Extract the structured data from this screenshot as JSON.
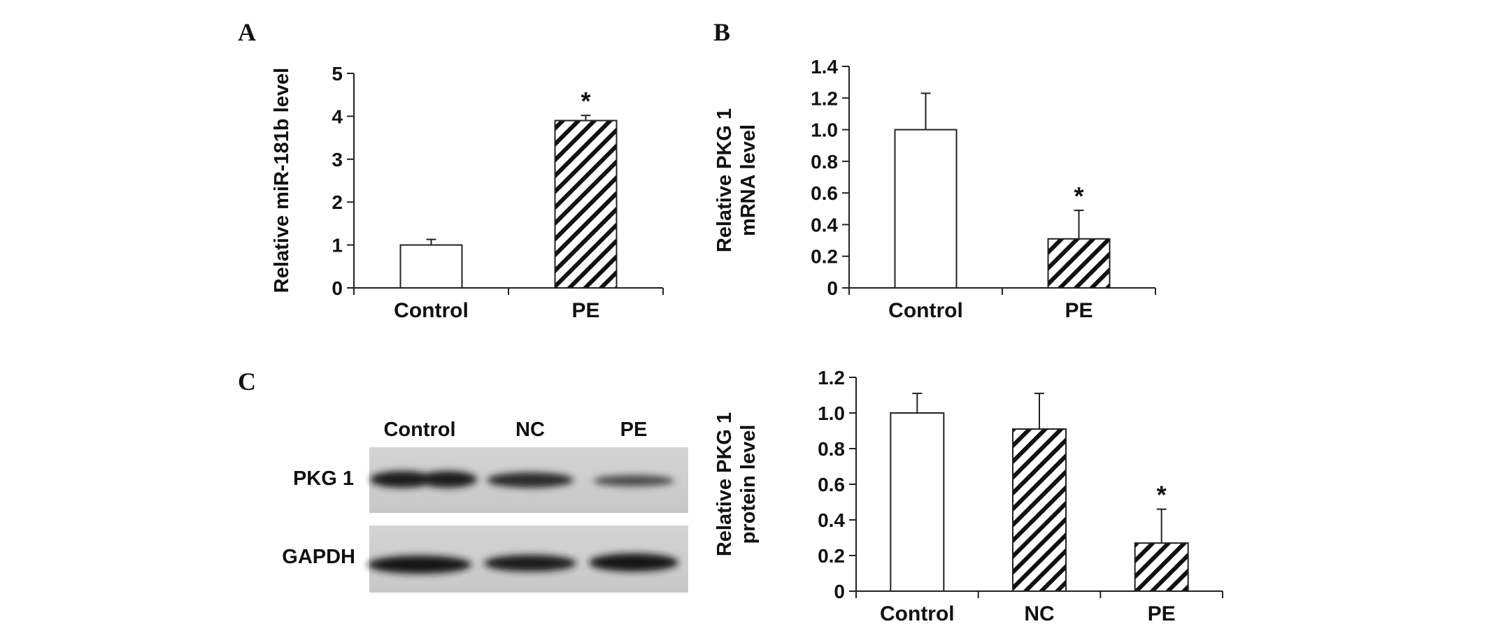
{
  "panels": {
    "A": "A",
    "B": "B",
    "C": "C"
  },
  "blot": {
    "lanes": [
      "Control",
      "NC",
      "PE"
    ],
    "rows": [
      "PKG 1",
      "GAPDH"
    ]
  },
  "chart_data": [
    {
      "id": "A",
      "type": "bar",
      "ylabel": "Relative miR-181b level",
      "categories": [
        "Control",
        "PE"
      ],
      "values": [
        1.0,
        3.9
      ],
      "errors": [
        0.13,
        0.12
      ],
      "patterns": [
        "white",
        "hatched"
      ],
      "significance": [
        "",
        "*"
      ],
      "ylim": [
        0,
        5
      ],
      "yticks": [
        0,
        1,
        2,
        3,
        4,
        5
      ],
      "yticklabels": [
        "0",
        "1",
        "2",
        "3",
        "4",
        "5"
      ]
    },
    {
      "id": "B",
      "type": "bar",
      "ylabel": [
        "Relative PKG 1",
        "mRNA level"
      ],
      "categories": [
        "Control",
        "PE"
      ],
      "values": [
        1.0,
        0.31
      ],
      "errors": [
        0.23,
        0.18
      ],
      "patterns": [
        "white",
        "hatched"
      ],
      "significance": [
        "",
        "*"
      ],
      "ylim": [
        0,
        1.4
      ],
      "yticks": [
        0,
        0.2,
        0.4,
        0.6,
        0.8,
        1.0,
        1.2,
        1.4
      ],
      "yticklabels": [
        "0",
        "0.2",
        "0.4",
        "0.6",
        "0.8",
        "1.0",
        "1.2",
        "1.4"
      ]
    },
    {
      "id": "C",
      "type": "bar",
      "ylabel": [
        "Relative PKG 1",
        "protein level"
      ],
      "categories": [
        "Control",
        "NC",
        "PE"
      ],
      "values": [
        1.0,
        0.91,
        0.27
      ],
      "errors": [
        0.11,
        0.2,
        0.19
      ],
      "patterns": [
        "white",
        "hatched",
        "hatched"
      ],
      "significance": [
        "",
        "",
        "*"
      ],
      "ylim": [
        0,
        1.2
      ],
      "yticks": [
        0,
        0.2,
        0.4,
        0.6,
        0.8,
        1.0,
        1.2
      ],
      "yticklabels": [
        "0",
        "0.2",
        "0.4",
        "0.6",
        "0.8",
        "1.0",
        "1.2"
      ]
    }
  ]
}
